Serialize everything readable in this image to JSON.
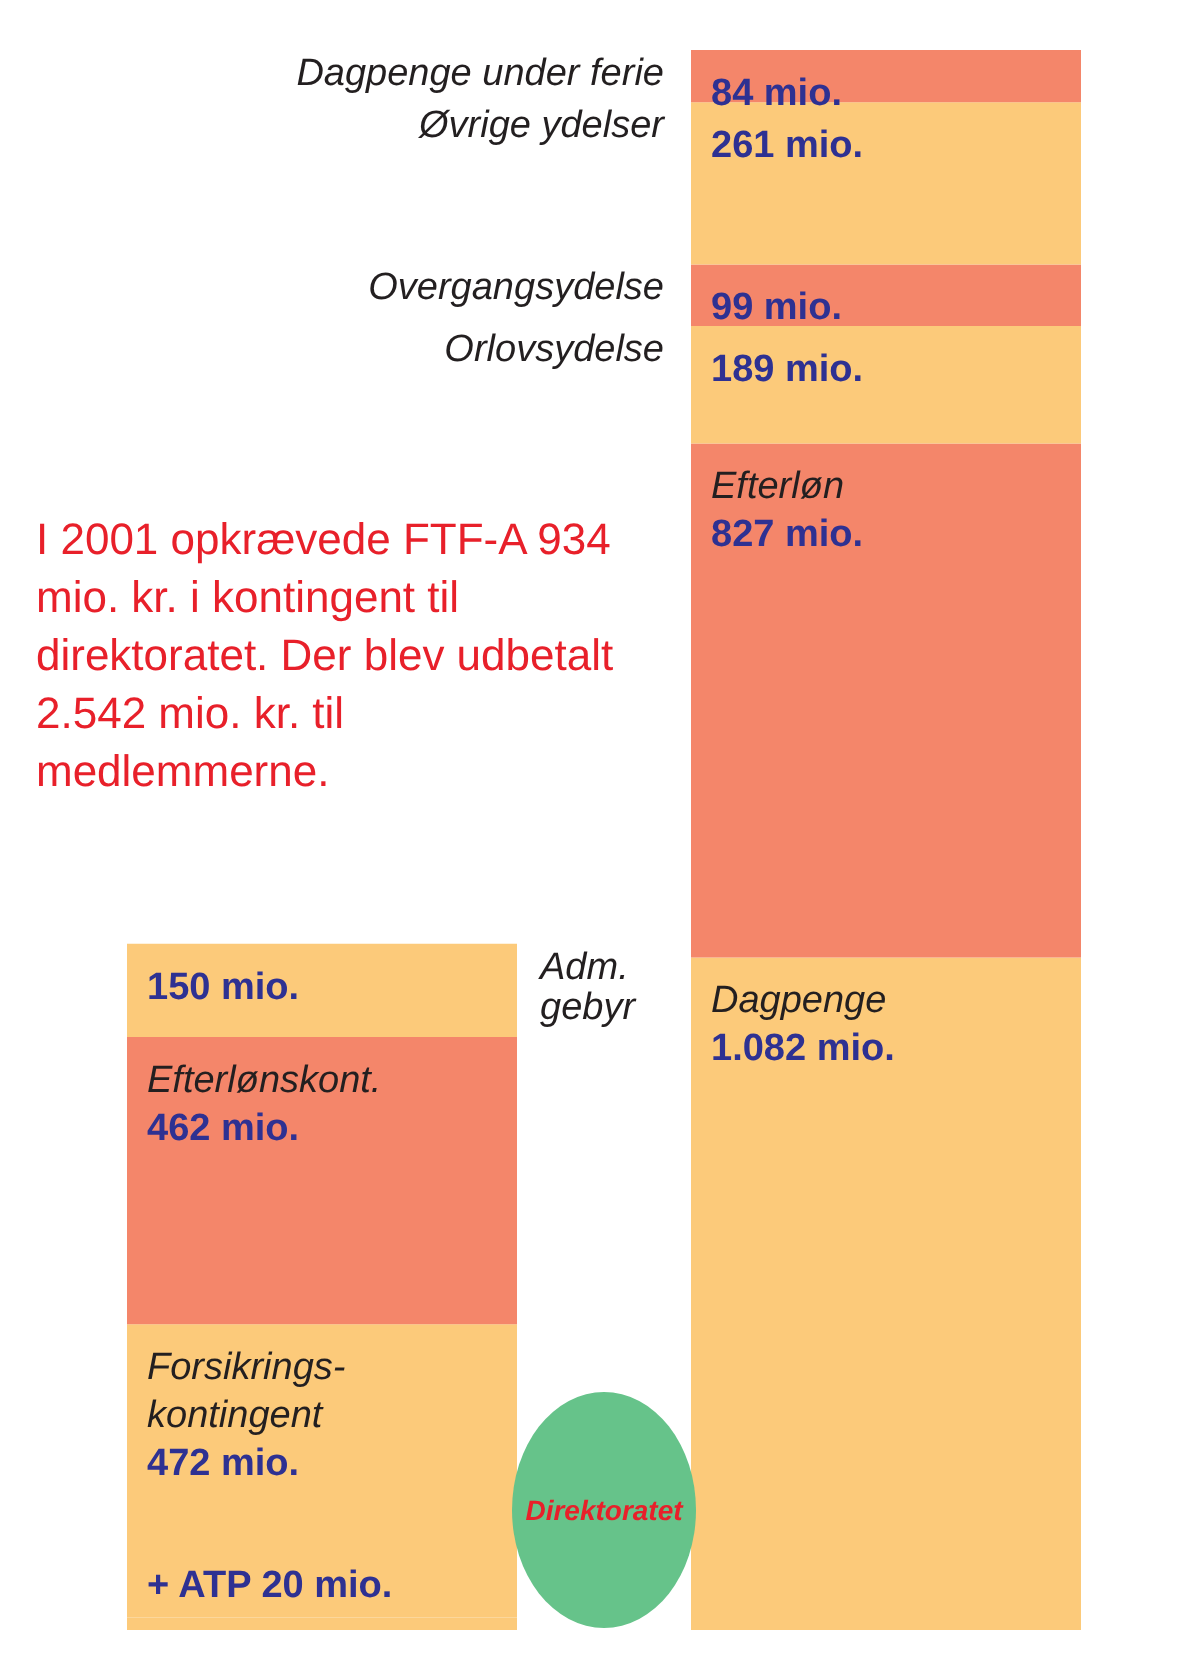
{
  "chart_data": {
    "type": "bar",
    "stacked": true,
    "categories": [
      null,
      null
    ],
    "tick_labels": false,
    "legend": false,
    "series": [
      {
        "color": "#fcca7a",
        "values": [
          20,
          null
        ],
        "value_labels": [
          "+ ATP 20 mio.",
          null
        ]
      },
      {
        "name": "Forsikrings-\nkontingent",
        "color": "#fcca7a",
        "values": [
          472,
          null
        ],
        "value_labels": [
          "472 mio.",
          null
        ]
      },
      {
        "name": "Efterlønskont.",
        "color": "#f4866a",
        "values": [
          462,
          null
        ],
        "value_labels": [
          "462 mio.",
          null
        ]
      },
      {
        "name": "Adm. gebyr",
        "color": "#fcca7a",
        "values": [
          150,
          null
        ],
        "value_labels": [
          "150 mio.",
          null
        ]
      },
      {
        "name": "Dagpenge",
        "color": "#fcca7a",
        "values": [
          null,
          1082
        ],
        "value_labels": [
          null,
          "1.082 mio."
        ]
      },
      {
        "name": "Efterløn",
        "color": "#f4866a",
        "values": [
          null,
          827
        ],
        "value_labels": [
          null,
          "827 mio."
        ]
      },
      {
        "name": "Orlovsydelse",
        "color": "#fcca7a",
        "values": [
          null,
          189
        ],
        "value_labels": [
          null,
          "189 mio."
        ]
      },
      {
        "name": "Overgangsydelse",
        "color": "#f4866a",
        "values": [
          null,
          99
        ],
        "value_labels": [
          null,
          "99 mio."
        ]
      },
      {
        "name": "Øvrige ydelser",
        "color": "#fcca7a",
        "values": [
          null,
          261
        ],
        "value_labels": [
          null,
          "261 mio."
        ]
      },
      {
        "name": "Dagpenge under ferie",
        "color": "#f4866a",
        "values": [
          null,
          84
        ],
        "value_labels": [
          null,
          "84 mio."
        ]
      }
    ],
    "annotations": [
      "I 2001 opkrævede FTF-A 934 mio. kr. i kontingent til direktoratet. Der blev udbetalt 2.542 mio. kr. til medlemmerne.",
      "Direktoratet"
    ]
  }
}
